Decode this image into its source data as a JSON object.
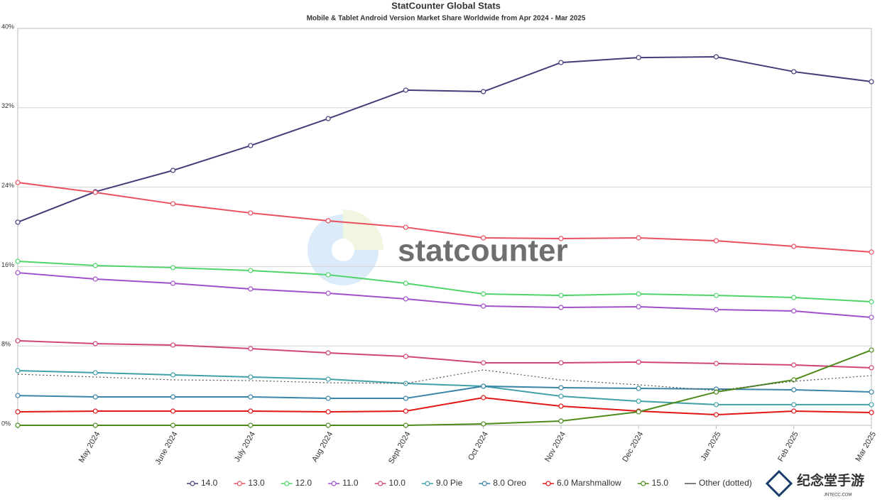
{
  "chart_data": {
    "type": "line",
    "title": "StatCounter Global Stats",
    "subtitle": "Mobile & Tablet Android Version Market Share Worldwide from Apr 2024 - Mar 2025",
    "watermark": "statcounter",
    "categories": [
      null,
      "May 2024",
      "June 2024",
      "July 2024",
      "Aug 2024",
      "Sept 2024",
      "Oct 2024",
      "Nov 2024",
      "Dec 2024",
      "Jan 2025",
      "Feb 2025",
      "Mar 2025"
    ],
    "ylim": [
      0,
      40
    ],
    "yticks": [
      {
        "value": 0,
        "label": "0%"
      },
      {
        "value": 8,
        "label": "8%"
      },
      {
        "value": 16,
        "label": "16%"
      },
      {
        "value": 24,
        "label": "24%"
      },
      {
        "value": 32,
        "label": "32%"
      },
      {
        "value": 40,
        "label": "40%"
      }
    ],
    "grid": true,
    "legend": "bottom",
    "series": [
      {
        "name": "14.0",
        "color": "#4b3a7a",
        "values": [
          20.47,
          23.54,
          25.69,
          28.19,
          30.91,
          33.78,
          33.63,
          36.56,
          37.06,
          37.14,
          35.64,
          34.63
        ]
      },
      {
        "name": "13.0",
        "color": "#e8505f",
        "values": [
          24.47,
          23.47,
          22.33,
          21.4,
          20.61,
          19.96,
          18.89,
          18.82,
          18.89,
          18.6,
          18.03,
          17.46
        ]
      },
      {
        "name": "12.0",
        "color": "#4fd46a",
        "values": [
          16.53,
          16.1,
          15.89,
          15.6,
          15.17,
          14.31,
          13.24,
          13.09,
          13.24,
          13.09,
          12.88,
          12.45
        ]
      },
      {
        "name": "11.0",
        "color": "#a050c8",
        "values": [
          15.38,
          14.74,
          14.31,
          13.74,
          13.31,
          12.74,
          12.02,
          11.88,
          11.95,
          11.66,
          11.52,
          10.88
        ]
      },
      {
        "name": "10.0",
        "color": "#d0457c",
        "values": [
          8.52,
          8.23,
          8.09,
          7.73,
          7.3,
          6.94,
          6.3,
          6.3,
          6.37,
          6.23,
          6.08,
          5.8
        ]
      },
      {
        "name": "9.0 Pie",
        "color": "#3fa0a8",
        "values": [
          5.51,
          5.3,
          5.08,
          4.87,
          4.65,
          4.22,
          3.94,
          2.93,
          2.43,
          2.08,
          2.08,
          2.08
        ]
      },
      {
        "name": "8.0 Oreo",
        "color": "#3a85a8",
        "values": [
          3.0,
          2.86,
          2.86,
          2.86,
          2.72,
          2.72,
          3.94,
          3.79,
          3.72,
          3.65,
          3.58,
          3.36
        ]
      },
      {
        "name": "6.0 Marshmallow",
        "color": "#e01818",
        "values": [
          1.36,
          1.43,
          1.43,
          1.43,
          1.36,
          1.43,
          2.79,
          1.93,
          1.43,
          1.07,
          1.43,
          1.29
        ]
      },
      {
        "name": "15.0",
        "color": "#4d8a1c",
        "values": [
          0,
          0,
          0,
          0,
          0,
          0,
          0.14,
          0.43,
          1.36,
          3.36,
          4.58,
          7.58
        ]
      },
      {
        "name": "Other (dotted)",
        "color": "#555555",
        "dotted": true,
        "values": [
          5.15,
          4.87,
          4.58,
          4.51,
          4.29,
          4.22,
          5.58,
          4.58,
          4.08,
          3.51,
          4.44,
          5.01
        ]
      }
    ]
  },
  "badge": {
    "title": "纪念堂手游",
    "subtitle": "JNTECC.COM"
  }
}
